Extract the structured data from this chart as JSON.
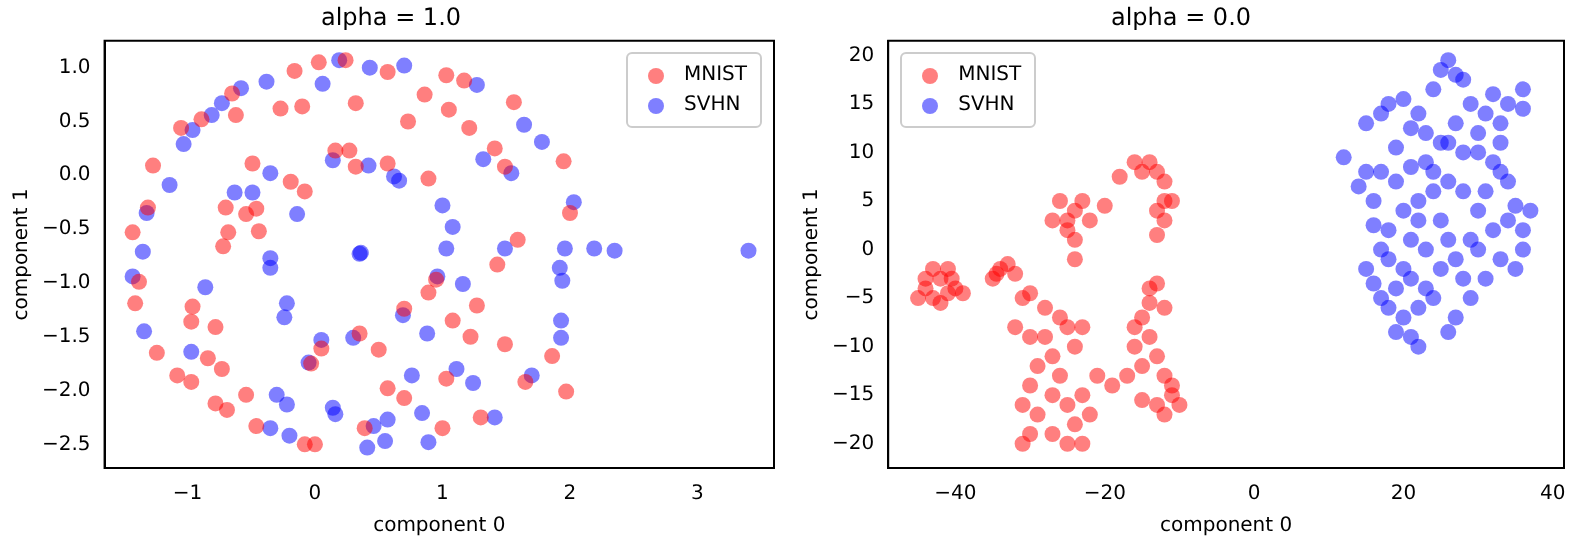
{
  "chart_data": [
    {
      "type": "scatter",
      "title": "alpha = 1.0",
      "xlabel": "component 0",
      "ylabel": "component 1",
      "xlim": [
        -1.65,
        3.6
      ],
      "ylim": [
        -2.72,
        1.25
      ],
      "xticks": [
        {
          "value": -1,
          "label": "−1"
        },
        {
          "value": 0,
          "label": "0"
        },
        {
          "value": 1,
          "label": "1"
        },
        {
          "value": 2,
          "label": "2"
        },
        {
          "value": 3,
          "label": "3"
        }
      ],
      "yticks": [
        {
          "value": -2.5,
          "label": "−2.5"
        },
        {
          "value": -2,
          "label": "−2.0"
        },
        {
          "value": -1.5,
          "label": "−1.5"
        },
        {
          "value": -1,
          "label": "−1.0"
        },
        {
          "value": -0.5,
          "label": "−0.5"
        },
        {
          "value": 0,
          "label": "0.0"
        },
        {
          "value": 0.5,
          "label": "0.5"
        },
        {
          "value": 1,
          "label": "1.0"
        }
      ],
      "legend": "top right",
      "marker": "circle",
      "grid": false,
      "series": [
        {
          "name": "MNIST",
          "color": "#ff0000",
          "x": [
            0.03,
            0.24,
            -0.16,
            -0.27,
            -0.1,
            0.32,
            0.57,
            0.73,
            0.86,
            1.03,
            1.17,
            1.05,
            1.21,
            1.41,
            1.56,
            1.49,
            1.95,
            2.0,
            1.59,
            1.43,
            1.27,
            1.22,
            1.49,
            1.86,
            1.65,
            1.3,
            1.0,
            0.7,
            0.57,
            0.39,
            0.0,
            -0.08,
            -0.46,
            -0.54,
            -0.69,
            -0.78,
            -0.73,
            -0.84,
            -0.97,
            -1.08,
            -1.24,
            -0.78,
            -0.97,
            -0.96,
            -1.41,
            -1.38,
            -0.72,
            -0.68,
            -0.44,
            -0.54,
            -0.46,
            -0.7,
            -0.08,
            -0.19,
            0.16,
            0.27,
            0.57,
            0.32,
            0.89,
            0.95,
            0.89,
            0.7,
            0.35,
            0.5,
            -0.03,
            0.05,
            -1.27,
            -1.31,
            -1.43,
            -1.05,
            -0.89,
            -0.65,
            -0.62,
            -0.49,
            1.97,
            1.03,
            1.08
          ],
          "values": [
            1.05,
            1.07,
            0.97,
            0.62,
            0.64,
            0.67,
            0.96,
            0.5,
            0.75,
            0.93,
            0.88,
            0.61,
            0.44,
            0.25,
            0.68,
            0.08,
            0.13,
            -0.35,
            -0.6,
            -0.83,
            -1.21,
            -1.5,
            -1.57,
            -1.68,
            -1.92,
            -2.25,
            -2.35,
            -2.07,
            -1.98,
            -2.35,
            -2.5,
            -2.5,
            -2.33,
            -2.04,
            -2.18,
            -2.12,
            -1.8,
            -1.7,
            -1.92,
            -1.86,
            -1.65,
            -1.41,
            -1.36,
            -1.22,
            -1.19,
            -0.99,
            -0.66,
            -0.53,
            -0.52,
            -0.36,
            -0.31,
            -0.3,
            -0.15,
            -0.06,
            0.23,
            0.23,
            0.11,
            0.08,
            -0.03,
            -0.97,
            -1.09,
            -1.24,
            -1.47,
            -1.62,
            -1.75,
            -1.61,
            0.09,
            -0.3,
            -0.53,
            0.44,
            0.52,
            0.76,
            0.56,
            0.11,
            -2.01,
            -1.89,
            -1.35
          ]
        },
        {
          "name": "SVHN",
          "color": "#0000ff",
          "x": [
            0.19,
            0.43,
            0.06,
            -0.38,
            -0.58,
            -0.73,
            -0.81,
            -0.96,
            -1.03,
            -1.14,
            -1.32,
            -1.35,
            -1.43,
            -1.34,
            -0.97,
            -0.3,
            -0.22,
            -0.35,
            -0.2,
            0.14,
            0.16,
            0.46,
            0.57,
            0.55,
            0.41,
            0.84,
            0.89,
            1.11,
            1.24,
            1.41,
            1.7,
            1.93,
            1.93,
            1.94,
            1.92,
            1.96,
            2.19,
            2.35,
            2.03,
            1.54,
            1.32,
            1.64,
            1.78,
            1.27,
            0.7,
            1.0,
            1.08,
            1.03,
            0.96,
            1.49,
            1.16,
            0.88,
            0.76,
            0.69,
            0.3,
            0.05,
            -0.05,
            -0.24,
            -0.22,
            -0.35,
            -0.35,
            -0.86,
            -0.35,
            -0.49,
            -0.63,
            -0.14,
            0.14,
            0.42,
            0.62,
            0.66,
            0.35,
            0.36,
            3.4
          ],
          "values": [
            1.07,
            1.0,
            0.85,
            0.87,
            0.81,
            0.67,
            0.56,
            0.42,
            0.29,
            -0.09,
            -0.35,
            -0.71,
            -0.94,
            -1.45,
            -1.64,
            -2.04,
            -2.13,
            -2.35,
            -2.42,
            -2.16,
            -2.22,
            -2.33,
            -2.27,
            -2.47,
            -2.53,
            -2.21,
            -2.48,
            -1.8,
            -1.93,
            -2.25,
            -1.86,
            -1.51,
            -1.35,
            -0.98,
            -0.86,
            -0.68,
            -0.68,
            -0.7,
            -0.25,
            0.02,
            0.15,
            0.47,
            0.31,
            0.84,
            1.02,
            -0.28,
            -0.48,
            -0.68,
            -0.94,
            -0.68,
            -1.01,
            -1.47,
            -1.86,
            -1.3,
            -1.51,
            -1.53,
            -1.74,
            -1.32,
            -1.19,
            -0.77,
            -0.86,
            -1.04,
            0.02,
            -0.16,
            -0.16,
            -0.36,
            0.14,
            0.09,
            -0.01,
            -0.05,
            -0.73,
            -0.72,
            -0.7
          ]
        }
      ]
    },
    {
      "type": "scatter",
      "title": "alpha = 0.0",
      "xlabel": "component 0",
      "ylabel": "component 1",
      "xlim": [
        -49,
        41.5
      ],
      "ylim": [
        -22.5,
        21.5
      ],
      "xticks": [
        {
          "value": -40,
          "label": "−40"
        },
        {
          "value": -20,
          "label": "−20"
        },
        {
          "value": 0,
          "label": "0"
        },
        {
          "value": 20,
          "label": "20"
        },
        {
          "value": 40,
          "label": "40"
        }
      ],
      "yticks": [
        {
          "value": -20,
          "label": "−20"
        },
        {
          "value": -15,
          "label": "−15"
        },
        {
          "value": -10,
          "label": "−10"
        },
        {
          "value": -5,
          "label": "−5"
        },
        {
          "value": 0,
          "label": "0"
        },
        {
          "value": 5,
          "label": "5"
        },
        {
          "value": 10,
          "label": "10"
        },
        {
          "value": 15,
          "label": "15"
        },
        {
          "value": 20,
          "label": "20"
        }
      ],
      "legend": "top left",
      "marker": "circle",
      "grid": false,
      "series": [
        {
          "name": "MNIST",
          "color": "#ff0000",
          "x": [
            -44,
            -43,
            -42,
            -41,
            -40,
            -43,
            -45,
            -42,
            -40.5,
            -44,
            -41,
            -39,
            -35,
            -34,
            -33,
            -32,
            -34.5,
            -31,
            -30,
            -32,
            -30,
            -28,
            -26,
            -25,
            -24,
            -27,
            -29,
            -30,
            -31,
            -29,
            -27,
            -25,
            -23,
            -24,
            -25,
            -27,
            -31,
            -22,
            -23,
            -21,
            -30,
            -26,
            -28,
            -23,
            -26,
            -25,
            -24,
            -23,
            -22,
            -20,
            -27,
            -24,
            -24,
            -25,
            -18,
            -16,
            -14,
            -13,
            -12,
            -12,
            -13,
            -12,
            -13,
            -15,
            -11,
            -14,
            -13,
            -12,
            -15,
            -14,
            -16,
            -13,
            -15,
            -17,
            -19,
            -12,
            -11,
            -10,
            -13,
            -15,
            -12,
            -11,
            -16,
            -14
          ],
          "values": [
            -4,
            -2,
            -3,
            -2,
            -4,
            -5,
            -5,
            -5.5,
            -3,
            -3,
            -4.5,
            -4.5,
            -3,
            -2,
            -1.5,
            -2.5,
            -2.5,
            -5,
            -4.5,
            -8,
            -9,
            -9,
            -7,
            -8,
            -10,
            -11,
            -12,
            -14,
            -16,
            -17,
            -15,
            -16,
            -15,
            -18,
            -20,
            -19,
            -20,
            -17,
            -20,
            -13,
            -19,
            -13,
            -6,
            -8,
            5,
            3,
            4,
            5,
            3,
            4.5,
            3,
            1,
            -1,
            2,
            7.5,
            9,
            9,
            8,
            7,
            5,
            4,
            3,
            1.5,
            8,
            5,
            -4,
            -3.5,
            -6,
            -7,
            -9,
            -10,
            -11,
            -12,
            -13,
            -14,
            -13,
            -15,
            -16,
            -16,
            -15.5,
            -17,
            -14,
            -8,
            -5.5
          ]
        },
        {
          "name": "SVHN",
          "color": "#0000ff",
          "x": [
            12,
            14,
            15,
            16,
            15,
            17,
            18,
            20,
            22,
            24,
            25,
            26,
            27,
            28,
            29,
            31,
            32,
            34,
            36,
            36,
            33,
            30,
            28,
            26,
            23,
            21,
            19,
            17,
            19,
            21,
            23,
            24,
            22,
            20,
            18,
            16,
            17,
            15,
            16,
            18,
            19,
            18,
            20,
            19,
            21,
            22,
            22,
            23,
            21,
            24,
            25,
            23,
            21,
            22,
            25,
            26,
            27,
            28,
            29,
            27,
            26,
            29,
            30,
            31,
            32,
            33,
            34,
            35,
            36,
            36,
            35,
            37,
            34,
            32,
            33,
            31,
            30,
            28,
            26,
            24,
            20,
            17,
            25,
            27,
            30,
            33
          ],
          "values": [
            9.5,
            6.5,
            8,
            5,
            13,
            14,
            15,
            15.5,
            14,
            16.5,
            18.5,
            19.5,
            18,
            17.5,
            15,
            14,
            16,
            15,
            16.5,
            14.5,
            13,
            12,
            10,
            11,
            12,
            12.5,
            10.5,
            8,
            7,
            8.5,
            9,
            6,
            5,
            4,
            2,
            2.5,
            0,
            -2,
            -3.5,
            -1,
            -4,
            -6,
            -7,
            -8.5,
            -9,
            -10,
            -6,
            -4,
            -3,
            -5,
            -2,
            0,
            1,
            3,
            3,
            1,
            -1,
            -3,
            -5,
            -7,
            -8.5,
            1,
            4,
            6,
            9,
            11,
            7,
            4.5,
            2,
            0,
            -2,
            4,
            3,
            2,
            -1,
            -3,
            0,
            6,
            7,
            8,
            -2,
            -5,
            11,
            13,
            10,
            8
          ]
        }
      ]
    }
  ]
}
